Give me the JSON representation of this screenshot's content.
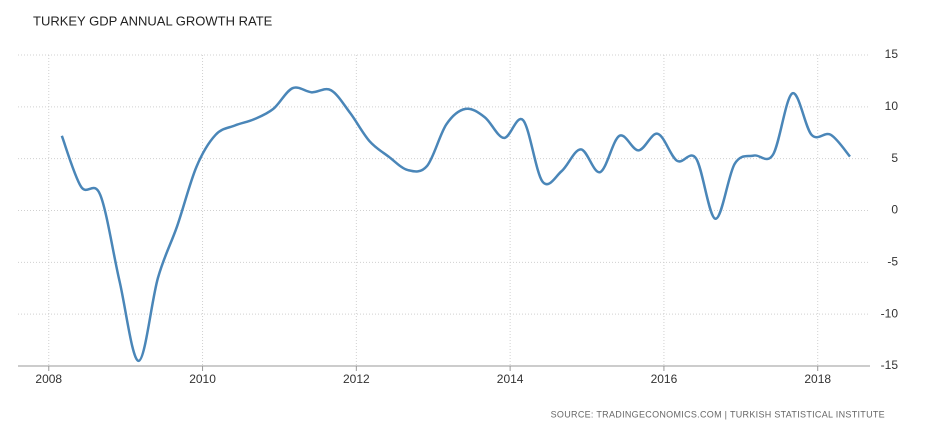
{
  "chart_data": {
    "type": "line",
    "title": "TURKEY GDP ANNUAL GROWTH RATE",
    "source": "SOURCE: TRADINGECONOMICS.COM | TURKISH STATISTICAL INSTITUTE",
    "x": [
      2008.17,
      2008.42,
      2008.67,
      2008.92,
      2009.17,
      2009.42,
      2009.67,
      2009.92,
      2010.17,
      2010.42,
      2010.67,
      2010.92,
      2011.17,
      2011.42,
      2011.67,
      2011.92,
      2012.17,
      2012.42,
      2012.67,
      2012.92,
      2013.17,
      2013.42,
      2013.67,
      2013.92,
      2014.17,
      2014.42,
      2014.67,
      2014.92,
      2015.17,
      2015.42,
      2015.67,
      2015.92,
      2016.17,
      2016.42,
      2016.67,
      2016.92,
      2017.17,
      2017.42,
      2017.67,
      2017.92,
      2018.17,
      2018.42
    ],
    "series": [
      {
        "name": "GDP Annual Growth Rate",
        "color": "#4a86b8",
        "values": [
          7.2,
          2.3,
          1.5,
          -6.8,
          -14.5,
          -6.5,
          -1.5,
          4.2,
          7.3,
          8.2,
          8.8,
          9.8,
          11.8,
          11.4,
          11.6,
          9.4,
          6.7,
          5.2,
          3.9,
          4.3,
          8.3,
          9.8,
          9.0,
          7.0,
          8.7,
          2.8,
          3.8,
          5.9,
          3.7,
          7.2,
          5.8,
          7.4,
          4.8,
          5.0,
          -0.8,
          4.5,
          5.3,
          5.4,
          11.3,
          7.3,
          7.3,
          5.2
        ]
      }
    ],
    "xlim": [
      2007.6,
      2018.68
    ],
    "xticks": [
      2008,
      2010,
      2012,
      2014,
      2016,
      2018
    ],
    "ylim": [
      -15,
      15
    ],
    "yticks": [
      15,
      10,
      5,
      0,
      -5,
      -10,
      -15
    ],
    "grid": true
  }
}
